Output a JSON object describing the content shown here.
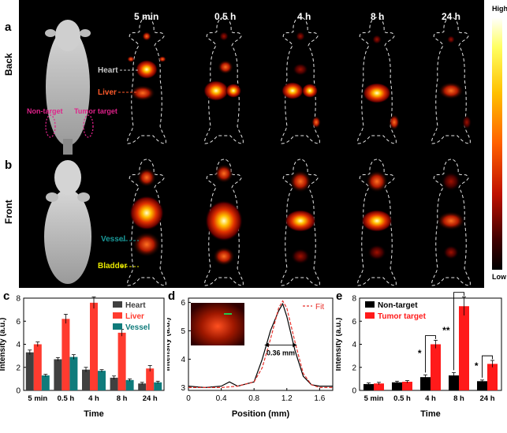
{
  "panels": {
    "a": "a",
    "b": "b",
    "c": "c",
    "d": "d",
    "e": "e"
  },
  "rows": {
    "back": "Back",
    "front": "Front"
  },
  "timepoints": [
    "5 min",
    "0.5 h",
    "4 h",
    "8 h",
    "24 h"
  ],
  "colorbar": {
    "high": "High",
    "low": "Low"
  },
  "annotations": {
    "heart": "Heart",
    "liver": "Liver",
    "non_target": "Non-target",
    "tumor_target": "Tumor target",
    "vessel": "Vessel",
    "bladder": "Bladder"
  },
  "colors": {
    "heart": "#404040",
    "liver": "#ff3b2f",
    "vessel": "#0f7b7b",
    "nontarget": "#000000",
    "tumor": "#ff1a1a",
    "fit": "#e8302a",
    "annot_heart": "#c8c8c8",
    "annot_liver": "#ff5a2a",
    "annot_ellipse": "#e0218a",
    "annot_vessel": "#1a9a9a",
    "annot_bladder": "#e8e800"
  },
  "chart_data": [
    {
      "type": "bar",
      "panel": "c",
      "categories": [
        "5 min",
        "0.5 h",
        "4 h",
        "8 h",
        "24 h"
      ],
      "series": [
        {
          "name": "Heart",
          "values": [
            3.3,
            2.7,
            1.8,
            1.1,
            0.6
          ],
          "errors": [
            0.2,
            0.15,
            0.2,
            0.15,
            0.1
          ]
        },
        {
          "name": "Liver",
          "values": [
            4.0,
            6.2,
            7.6,
            5.0,
            1.9
          ],
          "errors": [
            0.2,
            0.4,
            0.5,
            0.3,
            0.25
          ]
        },
        {
          "name": "Vessel",
          "values": [
            1.3,
            2.9,
            1.7,
            0.9,
            0.7
          ],
          "errors": [
            0.1,
            0.2,
            0.1,
            0.1,
            0.1
          ]
        }
      ],
      "xlabel": "Time",
      "ylabel": "Intensity (a.u.)",
      "ylim": [
        0,
        8
      ],
      "yticks": [
        0,
        2,
        4,
        6,
        8
      ]
    },
    {
      "type": "line",
      "panel": "d",
      "series": [
        {
          "name": "",
          "x": [
            0,
            0.2,
            0.4,
            0.5,
            0.6,
            0.8,
            0.9,
            1.0,
            1.1,
            1.15,
            1.2,
            1.3,
            1.4,
            1.5,
            1.6,
            1.76
          ],
          "y": [
            3.05,
            3.0,
            3.05,
            3.2,
            3.05,
            3.2,
            4.0,
            5.0,
            5.7,
            5.95,
            5.5,
            4.3,
            3.4,
            3.1,
            3.05,
            3.05
          ]
        },
        {
          "name": "Fit",
          "x": [
            0,
            0.2,
            0.4,
            0.6,
            0.8,
            0.9,
            1.0,
            1.1,
            1.15,
            1.2,
            1.3,
            1.4,
            1.5,
            1.6,
            1.76
          ],
          "y": [
            3.0,
            3.0,
            3.0,
            3.05,
            3.2,
            3.7,
            4.7,
            5.8,
            6.05,
            5.8,
            4.6,
            3.5,
            3.1,
            3.0,
            3.0
          ]
        }
      ],
      "annotation": "0.36 mm",
      "xlabel": "Position (mm)",
      "ylabel": "Intensity (a.u.)",
      "xlim": [
        0,
        1.76
      ],
      "ylim": [
        2.9,
        6.15
      ],
      "xticks": [
        0,
        0.4,
        0.8,
        1.2,
        1.6
      ],
      "xtick_labels": [
        "0",
        "0.4",
        "0.8",
        "1.2",
        "1.6"
      ],
      "yticks": [
        3,
        4,
        5,
        6
      ]
    },
    {
      "type": "bar",
      "panel": "e",
      "categories": [
        "5 min",
        "0.5 h",
        "4 h",
        "8 h",
        "24 h"
      ],
      "series": [
        {
          "name": "Non-target",
          "values": [
            0.55,
            0.7,
            1.15,
            1.3,
            0.8
          ],
          "errors": [
            0.1,
            0.1,
            0.2,
            0.25,
            0.1
          ]
        },
        {
          "name": "Tumor target",
          "values": [
            0.6,
            0.75,
            4.0,
            7.3,
            2.3
          ],
          "errors": [
            0.1,
            0.1,
            0.35,
            0.8,
            0.3
          ]
        }
      ],
      "significance": [
        "*",
        "**",
        "*"
      ],
      "xlabel": "Time",
      "ylabel": "Intensity (a.u.)",
      "ylim": [
        0,
        8
      ],
      "yticks": [
        0,
        2,
        4,
        6,
        8
      ]
    }
  ]
}
